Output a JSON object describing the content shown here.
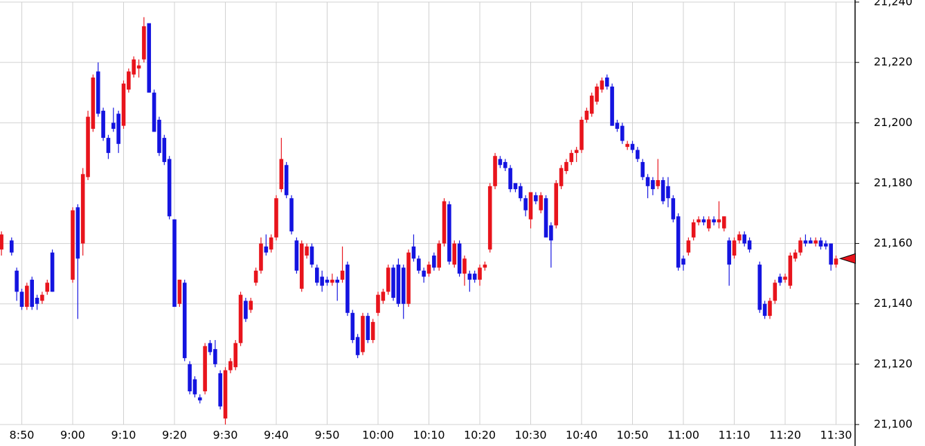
{
  "chart_data": {
    "type": "candlestick",
    "up_color": "#e8141c",
    "down_color": "#1414e0",
    "grid": true,
    "ylim": [
      21100,
      21240
    ],
    "yticks": [
      {
        "value": 21100,
        "label": "21,100"
      },
      {
        "value": 21120,
        "label": "21,120"
      },
      {
        "value": 21140,
        "label": "21,140"
      },
      {
        "value": 21160,
        "label": "21,160"
      },
      {
        "value": 21180,
        "label": "21,180"
      },
      {
        "value": 21200,
        "label": "21,200"
      },
      {
        "value": 21220,
        "label": "21,220"
      },
      {
        "value": 21240,
        "label": "21,240"
      }
    ],
    "categories": [
      null,
      null,
      null,
      null,
      "8:50",
      null,
      null,
      null,
      null,
      null,
      null,
      null,
      null,
      null,
      "9:00",
      null,
      null,
      null,
      null,
      null,
      null,
      null,
      null,
      null,
      "9:10",
      null,
      null,
      null,
      null,
      null,
      null,
      null,
      null,
      null,
      "9:20",
      null,
      null,
      null,
      null,
      null,
      null,
      null,
      null,
      null,
      "9:30",
      null,
      null,
      null,
      null,
      null,
      null,
      null,
      null,
      null,
      "9:40",
      null,
      null,
      null,
      null,
      null,
      null,
      null,
      null,
      null,
      "9:50",
      null,
      null,
      null,
      null,
      null,
      null,
      null,
      null,
      null,
      "10:00",
      null,
      null,
      null,
      null,
      null,
      null,
      null,
      null,
      null,
      "10:10",
      null,
      null,
      null,
      null,
      null,
      null,
      null,
      null,
      null,
      "10:20",
      null,
      null,
      null,
      null,
      null,
      null,
      null,
      null,
      null,
      "10:30",
      null,
      null,
      null,
      null,
      null,
      null,
      null,
      null,
      null,
      "10:40",
      null,
      null,
      null,
      null,
      null,
      null,
      null,
      null,
      null,
      "10:50",
      null,
      null,
      null,
      null,
      null,
      null,
      null,
      null,
      null,
      "11:00",
      null,
      null,
      null,
      null,
      null,
      null,
      null,
      null,
      null,
      "11:10",
      null,
      null,
      null,
      null,
      null,
      null,
      null,
      null,
      null,
      "11:20",
      null,
      null,
      null,
      null,
      null,
      null,
      null,
      null,
      null,
      "11:30"
    ],
    "ohlc": [
      [
        21158,
        21164,
        21156,
        21163
      ],
      null,
      [
        21161,
        21162,
        21156,
        21157
      ],
      [
        21151,
        21152,
        21141,
        21144
      ],
      [
        21144,
        21145,
        21138,
        21139
      ],
      [
        21139,
        21147,
        21138,
        21146
      ],
      [
        21148,
        21149,
        21138,
        21139
      ],
      [
        21142,
        21143,
        21138,
        21140
      ],
      [
        21141,
        21144,
        21140,
        21143
      ],
      [
        21144,
        21148,
        21143,
        21147
      ],
      [
        21157,
        21158,
        21144,
        21144
      ],
      null,
      null,
      null,
      [
        21148,
        21172,
        21147,
        21171
      ],
      [
        21172,
        21173,
        21135,
        21155
      ],
      [
        21160,
        21185,
        21156,
        21183
      ],
      [
        21182,
        21204,
        21181,
        21202
      ],
      [
        21198,
        21216,
        21197,
        21215
      ],
      [
        21217,
        21220,
        21202,
        21203
      ],
      [
        21204,
        21205,
        21194,
        21195
      ],
      [
        21195,
        21196,
        21188,
        21190
      ],
      [
        21200,
        21205,
        21197,
        21198
      ],
      [
        21203,
        21204,
        21190,
        21193
      ],
      [
        21199,
        21214,
        21198,
        21213
      ],
      [
        21211,
        21218,
        21210,
        21217
      ],
      [
        21216,
        21222,
        21215,
        21221
      ],
      [
        21218,
        21221,
        21215,
        21219
      ],
      [
        21221,
        21235,
        21220,
        21232
      ],
      [
        21233,
        21233,
        21210,
        21210
      ],
      [
        21210,
        21211,
        21197,
        21197
      ],
      [
        21201,
        21202,
        21189,
        21190
      ],
      [
        21195,
        21196,
        21186,
        21187
      ],
      [
        21188,
        21189,
        21168,
        21169
      ],
      [
        21168,
        21168,
        21139,
        21139
      ],
      [
        21140,
        21148,
        21139,
        21148
      ],
      [
        21147,
        21148,
        21121,
        21122
      ],
      [
        21120,
        21121,
        21110,
        21111
      ],
      [
        21115,
        21116,
        21109,
        21110
      ],
      [
        21109,
        21110,
        21107,
        21108
      ],
      [
        21111,
        21127,
        21110,
        21126
      ],
      [
        21127,
        21128,
        21123,
        21124
      ],
      [
        21125,
        21128,
        21119,
        21120
      ],
      [
        21117,
        21118,
        21105,
        21106
      ],
      [
        21102,
        21119,
        21100,
        21118
      ],
      [
        21118,
        21122,
        21117,
        21121
      ],
      [
        21119,
        21128,
        21118,
        21127
      ],
      [
        21127,
        21144,
        21126,
        21143
      ],
      [
        21141,
        21142,
        21134,
        21135
      ],
      [
        21138,
        21142,
        21137,
        21141
      ],
      [
        21147,
        21152,
        21146,
        21151
      ],
      [
        21151,
        21162,
        21150,
        21160
      ],
      [
        21159,
        21163,
        21156,
        21157
      ],
      [
        21158,
        21163,
        21157,
        21162
      ],
      [
        21162,
        21176,
        21161,
        21175
      ],
      [
        21178,
        21195,
        21177,
        21188
      ],
      [
        21186,
        21187,
        21175,
        21176
      ],
      [
        21175,
        21176,
        21163,
        21164
      ],
      [
        21161,
        21162,
        21150,
        21151
      ],
      [
        21145,
        21161,
        21144,
        21160
      ],
      [
        21156,
        21160,
        21155,
        21159
      ],
      [
        21159,
        21160,
        21152,
        21153
      ],
      [
        21152,
        21153,
        21146,
        21147
      ],
      [
        21149,
        21151,
        21144,
        21146
      ],
      [
        21148,
        21149,
        21146,
        21147
      ],
      [
        21147,
        21150,
        21146,
        21148
      ],
      [
        21148,
        21149,
        21141,
        21147
      ],
      [
        21148,
        21159,
        21147,
        21151
      ],
      [
        21153,
        21154,
        21136,
        21137
      ],
      [
        21137,
        21138,
        21127,
        21128
      ],
      [
        21129,
        21130,
        21122,
        21123
      ],
      [
        21124,
        21137,
        21123,
        21136
      ],
      [
        21136,
        21137,
        21127,
        21128
      ],
      [
        21128,
        21135,
        21127,
        21134
      ],
      [
        21137,
        21144,
        21136,
        21143
      ],
      [
        21141,
        21145,
        21140,
        21144
      ],
      [
        21144,
        21153,
        21143,
        21152
      ],
      [
        21152,
        21153,
        21141,
        21142
      ],
      [
        21153,
        21155,
        21139,
        21140
      ],
      [
        21152,
        21153,
        21135,
        21140
      ],
      [
        21140,
        21158,
        21139,
        21157
      ],
      [
        21159,
        21163,
        21154,
        21155
      ],
      [
        21155,
        21156,
        21150,
        21151
      ],
      [
        21151,
        21152,
        21147,
        21149
      ],
      [
        21150,
        21154,
        21149,
        21153
      ],
      [
        21156,
        21157,
        21151,
        21152
      ],
      [
        21152,
        21161,
        21151,
        21160
      ],
      [
        21160,
        21175,
        21159,
        21174
      ],
      [
        21173,
        21174,
        21153,
        21154
      ],
      [
        21153,
        21161,
        21152,
        21160
      ],
      [
        21160,
        21161,
        21149,
        21150
      ],
      [
        21150,
        21156,
        21146,
        21155
      ],
      [
        21150,
        21151,
        21144,
        21148
      ],
      [
        21150,
        21151,
        21147,
        21148
      ],
      [
        21148,
        21153,
        21146,
        21152
      ],
      [
        21152,
        21154,
        21151,
        21153
      ],
      [
        21158,
        21180,
        21157,
        21179
      ],
      [
        21179,
        21190,
        21178,
        21189
      ],
      [
        21188,
        21189,
        21185,
        21186
      ],
      [
        21187,
        21188,
        21184,
        21185
      ],
      [
        21185,
        21186,
        21177,
        21178
      ],
      [
        21180,
        21180,
        21177,
        21178
      ],
      [
        21179,
        21180,
        21174,
        21175
      ],
      [
        21175,
        21176,
        21169,
        21171
      ],
      [
        21168,
        21177,
        21165,
        21177
      ],
      [
        21176,
        21177,
        21173,
        21174
      ],
      [
        21171,
        21177,
        21170,
        21176
      ],
      [
        21175,
        21176,
        21162,
        21162
      ],
      [
        21166,
        21167,
        21152,
        21161
      ],
      [
        21166,
        21181,
        21165,
        21180
      ],
      [
        21179,
        21186,
        21178,
        21185
      ],
      [
        21184,
        21188,
        21183,
        21187
      ],
      [
        21187,
        21191,
        21186,
        21190
      ],
      [
        21190,
        21192,
        21187,
        21191
      ],
      [
        21191,
        21202,
        21190,
        21201
      ],
      [
        21201,
        21205,
        21200,
        21204
      ],
      [
        21203,
        21210,
        21202,
        21209
      ],
      [
        21207,
        21213,
        21206,
        21212
      ],
      [
        21211,
        21215,
        21210,
        21214
      ],
      [
        21215,
        21216,
        21211,
        21212
      ],
      [
        21212,
        21213,
        21199,
        21199
      ],
      [
        21200,
        21201,
        21197,
        21198
      ],
      [
        21199,
        21200,
        21193,
        21194
      ],
      [
        21192,
        21194,
        21191,
        21193
      ],
      [
        21193,
        21194,
        21190,
        21191
      ],
      [
        21191,
        21192,
        21187,
        21188
      ],
      [
        21187,
        21188,
        21181,
        21182
      ],
      [
        21182,
        21183,
        21175,
        21179
      ],
      [
        21181,
        21182,
        21176,
        21178
      ],
      [
        21179,
        21188,
        21178,
        21181
      ],
      [
        21181,
        21182,
        21173,
        21174
      ],
      [
        21179,
        21182,
        21172,
        21175
      ],
      [
        21175,
        21176,
        21167,
        21168
      ],
      [
        21169,
        21170,
        21151,
        21152
      ],
      [
        21155,
        21156,
        21151,
        21153
      ],
      [
        21157,
        21162,
        21156,
        21161
      ],
      [
        21162,
        21168,
        21161,
        21167
      ],
      [
        21167,
        21169,
        21166,
        21168
      ],
      [
        21168,
        21169,
        21166,
        21167
      ],
      [
        21165,
        21169,
        21164,
        21168
      ],
      [
        21168,
        21169,
        21166,
        21167
      ],
      [
        21167,
        21174,
        21165,
        21168
      ],
      [
        21165,
        21169,
        21164,
        21169
      ],
      [
        21161,
        21162,
        21146,
        21153
      ],
      [
        21156,
        21162,
        21155,
        21161
      ],
      [
        21161,
        21164,
        21160,
        21163
      ],
      [
        21163,
        21164,
        21159,
        21160
      ],
      [
        21161,
        21162,
        21157,
        21158
      ],
      null,
      [
        21153,
        21154,
        21137,
        21138
      ],
      [
        21140,
        21141,
        21135,
        21136
      ],
      [
        21136,
        21142,
        21135,
        21141
      ],
      [
        21141,
        21148,
        21140,
        21147
      ],
      [
        21149,
        21150,
        21146,
        21147
      ],
      [
        21148,
        21150,
        21147,
        21149
      ],
      [
        21146,
        21157,
        21145,
        21156
      ],
      [
        21155,
        21158,
        21154,
        21157
      ],
      [
        21157,
        21162,
        21156,
        21161
      ],
      [
        21161,
        21163,
        21159,
        21160
      ],
      [
        21161,
        21162,
        21160,
        21160
      ],
      [
        21160,
        21162,
        21159,
        21161
      ],
      [
        21161,
        21162,
        21158,
        21159
      ],
      [
        21160,
        21161,
        21158,
        21159
      ],
      [
        21160,
        21160,
        21151,
        21153
      ],
      [
        21153,
        21156,
        21152,
        21155
      ]
    ]
  }
}
